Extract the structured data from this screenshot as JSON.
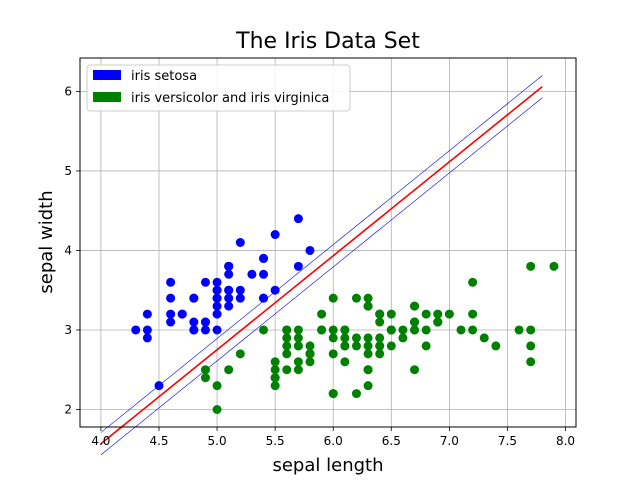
{
  "chart_data": {
    "type": "scatter",
    "title": "The Iris Data Set",
    "xlabel": "sepal length",
    "ylabel": "sepal width",
    "xlim": [
      3.82,
      8.09
    ],
    "ylim": [
      1.78,
      6.42
    ],
    "xticks": [
      "4.0",
      "4.5",
      "5.0",
      "5.5",
      "6.0",
      "6.5",
      "7.0",
      "7.5",
      "8.0"
    ],
    "yticks": [
      "2",
      "3",
      "4",
      "5",
      "6"
    ],
    "grid": true,
    "legend_placement": "top-left",
    "series": [
      {
        "name": "iris setosa",
        "color": "#0000ff",
        "points": [
          [
            5.1,
            3.5
          ],
          [
            4.9,
            3.0
          ],
          [
            4.7,
            3.2
          ],
          [
            4.6,
            3.1
          ],
          [
            5.0,
            3.6
          ],
          [
            5.4,
            3.9
          ],
          [
            4.6,
            3.4
          ],
          [
            5.0,
            3.4
          ],
          [
            4.4,
            2.9
          ],
          [
            4.9,
            3.1
          ],
          [
            5.4,
            3.7
          ],
          [
            4.8,
            3.4
          ],
          [
            4.8,
            3.0
          ],
          [
            4.3,
            3.0
          ],
          [
            5.8,
            4.0
          ],
          [
            5.7,
            4.4
          ],
          [
            5.4,
            3.9
          ],
          [
            5.1,
            3.5
          ],
          [
            5.7,
            3.8
          ],
          [
            5.1,
            3.8
          ],
          [
            5.4,
            3.4
          ],
          [
            5.1,
            3.7
          ],
          [
            4.6,
            3.6
          ],
          [
            5.1,
            3.3
          ],
          [
            4.8,
            3.4
          ],
          [
            5.0,
            3.0
          ],
          [
            5.0,
            3.4
          ],
          [
            5.2,
            3.5
          ],
          [
            5.2,
            3.4
          ],
          [
            4.7,
            3.2
          ],
          [
            4.8,
            3.1
          ],
          [
            5.4,
            3.4
          ],
          [
            5.2,
            4.1
          ],
          [
            5.5,
            4.2
          ],
          [
            4.9,
            3.1
          ],
          [
            5.0,
            3.2
          ],
          [
            5.5,
            3.5
          ],
          [
            4.9,
            3.6
          ],
          [
            4.4,
            3.0
          ],
          [
            5.1,
            3.4
          ],
          [
            5.0,
            3.5
          ],
          [
            4.5,
            2.3
          ],
          [
            4.4,
            3.2
          ],
          [
            5.0,
            3.5
          ],
          [
            5.1,
            3.8
          ],
          [
            4.8,
            3.0
          ],
          [
            5.1,
            3.8
          ],
          [
            4.6,
            3.2
          ],
          [
            5.3,
            3.7
          ],
          [
            5.0,
            3.3
          ]
        ]
      },
      {
        "name": "iris versicolor and iris virginica",
        "color": "#008000",
        "points": [
          [
            7.0,
            3.2
          ],
          [
            6.4,
            3.2
          ],
          [
            6.9,
            3.1
          ],
          [
            5.5,
            2.3
          ],
          [
            6.5,
            2.8
          ],
          [
            5.7,
            2.8
          ],
          [
            6.3,
            3.3
          ],
          [
            4.9,
            2.4
          ],
          [
            6.6,
            2.9
          ],
          [
            5.2,
            2.7
          ],
          [
            5.0,
            2.0
          ],
          [
            5.9,
            3.0
          ],
          [
            6.0,
            2.2
          ],
          [
            6.1,
            2.9
          ],
          [
            5.6,
            2.9
          ],
          [
            6.7,
            3.1
          ],
          [
            5.6,
            3.0
          ],
          [
            5.8,
            2.7
          ],
          [
            6.2,
            2.2
          ],
          [
            5.6,
            2.5
          ],
          [
            5.9,
            3.2
          ],
          [
            6.1,
            2.8
          ],
          [
            6.3,
            2.5
          ],
          [
            6.1,
            2.8
          ],
          [
            6.4,
            2.9
          ],
          [
            6.6,
            3.0
          ],
          [
            6.8,
            2.8
          ],
          [
            6.7,
            3.0
          ],
          [
            6.0,
            2.9
          ],
          [
            5.7,
            2.6
          ],
          [
            5.5,
            2.4
          ],
          [
            5.5,
            2.4
          ],
          [
            5.8,
            2.7
          ],
          [
            6.0,
            2.7
          ],
          [
            5.4,
            3.0
          ],
          [
            6.0,
            3.4
          ],
          [
            6.7,
            3.1
          ],
          [
            6.3,
            2.3
          ],
          [
            5.6,
            3.0
          ],
          [
            5.5,
            2.5
          ],
          [
            5.5,
            2.6
          ],
          [
            6.1,
            3.0
          ],
          [
            5.8,
            2.6
          ],
          [
            5.0,
            2.3
          ],
          [
            5.6,
            2.7
          ],
          [
            5.7,
            3.0
          ],
          [
            5.7,
            2.9
          ],
          [
            6.2,
            2.9
          ],
          [
            5.1,
            2.5
          ],
          [
            5.7,
            2.8
          ],
          [
            6.3,
            3.3
          ],
          [
            5.8,
            2.7
          ],
          [
            7.1,
            3.0
          ],
          [
            6.3,
            2.9
          ],
          [
            6.5,
            3.0
          ],
          [
            7.6,
            3.0
          ],
          [
            4.9,
            2.5
          ],
          [
            7.3,
            2.9
          ],
          [
            6.7,
            2.5
          ],
          [
            7.2,
            3.6
          ],
          [
            6.5,
            3.2
          ],
          [
            6.4,
            2.7
          ],
          [
            6.8,
            3.0
          ],
          [
            5.7,
            2.5
          ],
          [
            5.8,
            2.8
          ],
          [
            6.4,
            3.2
          ],
          [
            6.5,
            3.0
          ],
          [
            7.7,
            3.8
          ],
          [
            7.7,
            2.6
          ],
          [
            6.0,
            2.2
          ],
          [
            6.9,
            3.2
          ],
          [
            5.6,
            2.8
          ],
          [
            7.7,
            2.8
          ],
          [
            6.3,
            2.7
          ],
          [
            6.7,
            3.3
          ],
          [
            7.2,
            3.2
          ],
          [
            6.2,
            2.8
          ],
          [
            6.1,
            3.0
          ],
          [
            6.4,
            2.8
          ],
          [
            7.2,
            3.0
          ],
          [
            7.4,
            2.8
          ],
          [
            7.9,
            3.8
          ],
          [
            6.4,
            2.8
          ],
          [
            6.3,
            2.8
          ],
          [
            6.1,
            2.6
          ],
          [
            7.7,
            3.0
          ],
          [
            6.3,
            3.4
          ],
          [
            6.4,
            3.1
          ],
          [
            6.0,
            3.0
          ],
          [
            6.9,
            3.1
          ],
          [
            6.7,
            3.1
          ],
          [
            6.9,
            3.1
          ],
          [
            5.8,
            2.7
          ],
          [
            6.8,
            3.2
          ],
          [
            6.7,
            3.3
          ],
          [
            6.7,
            3.0
          ],
          [
            6.3,
            2.5
          ],
          [
            6.5,
            3.0
          ],
          [
            6.2,
            3.4
          ],
          [
            5.9,
            3.0
          ]
        ]
      }
    ],
    "lines": [
      {
        "role": "decision-boundary",
        "color": "#ff0000",
        "x": [
          4.0,
          7.8
        ],
        "y": [
          1.57,
          6.06
        ]
      },
      {
        "role": "upper-margin",
        "color": "#0000ff",
        "x": [
          4.0,
          7.8
        ],
        "y": [
          1.71,
          6.2
        ]
      },
      {
        "role": "lower-margin",
        "color": "#0000ff",
        "x": [
          4.0,
          7.8
        ],
        "y": [
          1.43,
          5.92
        ]
      }
    ]
  }
}
